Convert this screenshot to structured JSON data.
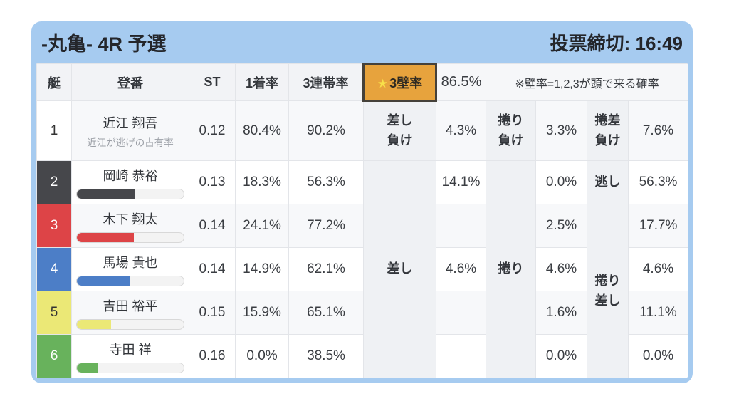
{
  "card": {
    "title": "-丸亀- 4R 予選",
    "deadline_label": "投票締切: 16:49"
  },
  "colors": {
    "frame_blue": "#a6cbf0",
    "highlight_orange": "#e7a33d",
    "highlight_border": "#45413a",
    "star_yellow": "#f8e049",
    "label_cell_gray": "#eff1f4",
    "row_alt_gray": "#f7f8fa"
  },
  "table": {
    "headers": {
      "boat": "艇",
      "racer": "登番",
      "st": "ST",
      "win_rate": "1着率",
      "trio_rate": "3連帯率"
    },
    "kabe": {
      "star": "★",
      "label": "3壁率",
      "value": "86.5%",
      "note": "※壁率=1,2,3が頭で来る確率"
    },
    "merged_labels": {
      "sashi": "差し",
      "makuri": "捲り",
      "makurizashi": "捲り\n差し"
    },
    "rows": [
      {
        "boat": "1",
        "name": "近江 翔吾",
        "sub": "近江が逃げの占有率",
        "st": "0.12",
        "win": "80.4%",
        "trio": "90.2%",
        "label1": "差し\n負け",
        "val1": "4.3%",
        "label2": "捲り\n負け",
        "val2": "3.3%",
        "label3": "捲差\n負け",
        "val3": "7.6%",
        "color": "#ffffff",
        "num_color": "#333333"
      },
      {
        "boat": "2",
        "name": "岡崎 恭裕",
        "st": "0.13",
        "win": "18.3%",
        "trio": "56.3%",
        "val1": "14.1%",
        "val2": "0.0%",
        "label3": "逃し",
        "val3": "56.3%",
        "bar_pct": 54,
        "color": "#46474b",
        "num_color": "#ffffff"
      },
      {
        "boat": "3",
        "name": "木下 翔太",
        "st": "0.14",
        "win": "24.1%",
        "trio": "77.2%",
        "val2": "2.5%",
        "val3": "17.7%",
        "bar_pct": 53,
        "color": "#dd4447",
        "num_color": "#ffffff"
      },
      {
        "boat": "4",
        "name": "馬場 貴也",
        "st": "0.14",
        "win": "14.9%",
        "trio": "62.1%",
        "val1": "4.6%",
        "val2": "4.6%",
        "val3": "4.6%",
        "bar_pct": 50,
        "color": "#4c7ec7",
        "num_color": "#ffffff"
      },
      {
        "boat": "5",
        "name": "吉田 裕平",
        "st": "0.15",
        "win": "15.9%",
        "trio": "65.1%",
        "val2": "1.6%",
        "val3": "11.1%",
        "bar_pct": 32,
        "color": "#ebe876",
        "num_color": "#333333"
      },
      {
        "boat": "6",
        "name": "寺田 祥",
        "st": "0.16",
        "win": "0.0%",
        "trio": "38.5%",
        "val2": "0.0%",
        "val3": "0.0%",
        "bar_pct": 19,
        "color": "#68b25c",
        "num_color": "#ffffff"
      }
    ]
  }
}
